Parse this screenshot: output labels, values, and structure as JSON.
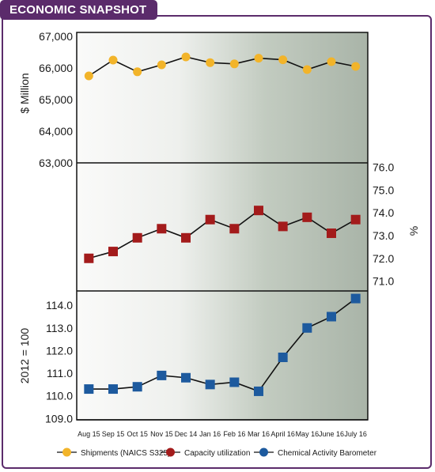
{
  "header": {
    "title": "ECONOMIC SNAPSHOT"
  },
  "chart_data": {
    "type": "line",
    "categories": [
      "Aug 15",
      "Sep 15",
      "Oct 15",
      "Nov 15",
      "Dec 14",
      "Jan 16",
      "Feb 16",
      "Mar 16",
      "April 16",
      "May 16",
      "June 16",
      "July 16"
    ],
    "panels": [
      {
        "id": "shipments",
        "ylabel": "$ Million",
        "ylim": [
          63000,
          67000
        ],
        "yticks": [
          63000,
          64000,
          65000,
          66000,
          67000
        ],
        "ytick_labels": [
          "63,000",
          "64,000",
          "65,000",
          "66,000",
          "67,000"
        ],
        "axis_side": "left",
        "marker": "circle",
        "color": "#f2b42a",
        "series": [
          {
            "name": "Shipments (NAICS S325)",
            "values": [
              65750,
              66250,
              65880,
              66100,
              66350,
              66170,
              66130,
              66310,
              66260,
              65950,
              66200,
              66050
            ]
          }
        ]
      },
      {
        "id": "capacity",
        "ylabel": "%",
        "ylim": [
          70.5,
          76.5
        ],
        "yticks": [
          71.0,
          72.0,
          73.0,
          74.0,
          75.0,
          76.0
        ],
        "ytick_labels": [
          "71.0",
          "72.0",
          "73.0",
          "74.0",
          "75.0",
          "76.0"
        ],
        "axis_side": "right",
        "marker": "square",
        "color": "#a31b1b",
        "series": [
          {
            "name": "Capacity utilization",
            "values": [
              72.0,
              72.3,
              72.9,
              73.3,
              72.9,
              73.7,
              73.3,
              74.1,
              73.4,
              73.8,
              73.1,
              73.7
            ]
          }
        ]
      },
      {
        "id": "cab",
        "ylabel": "2012 = 100",
        "ylim": [
          108.8,
          114.6
        ],
        "yticks": [
          109.0,
          110.0,
          111.0,
          112.0,
          113.0,
          114.0
        ],
        "ytick_labels": [
          "109.0",
          "110.0",
          "111.0",
          "112.0",
          "113.0",
          "114.0"
        ],
        "axis_side": "left",
        "marker": "square",
        "color": "#1d5a9e",
        "series": [
          {
            "name": "Chemical Activity Barometer",
            "values": [
              110.3,
              110.3,
              110.4,
              110.9,
              110.8,
              110.5,
              110.6,
              110.2,
              111.7,
              113.0,
              113.5,
              114.3
            ]
          }
        ]
      }
    ],
    "legend": {
      "placement": "bottom",
      "items": [
        "Shipments (NAICS S325)",
        "Capacity utilization",
        "Chemical Activity Barometer"
      ]
    },
    "colors": {
      "line": "#111111",
      "frame": "#5b2b6b",
      "plot_bg_light": "#f7f7f6",
      "plot_bg_dark": "#aab5a9"
    }
  }
}
